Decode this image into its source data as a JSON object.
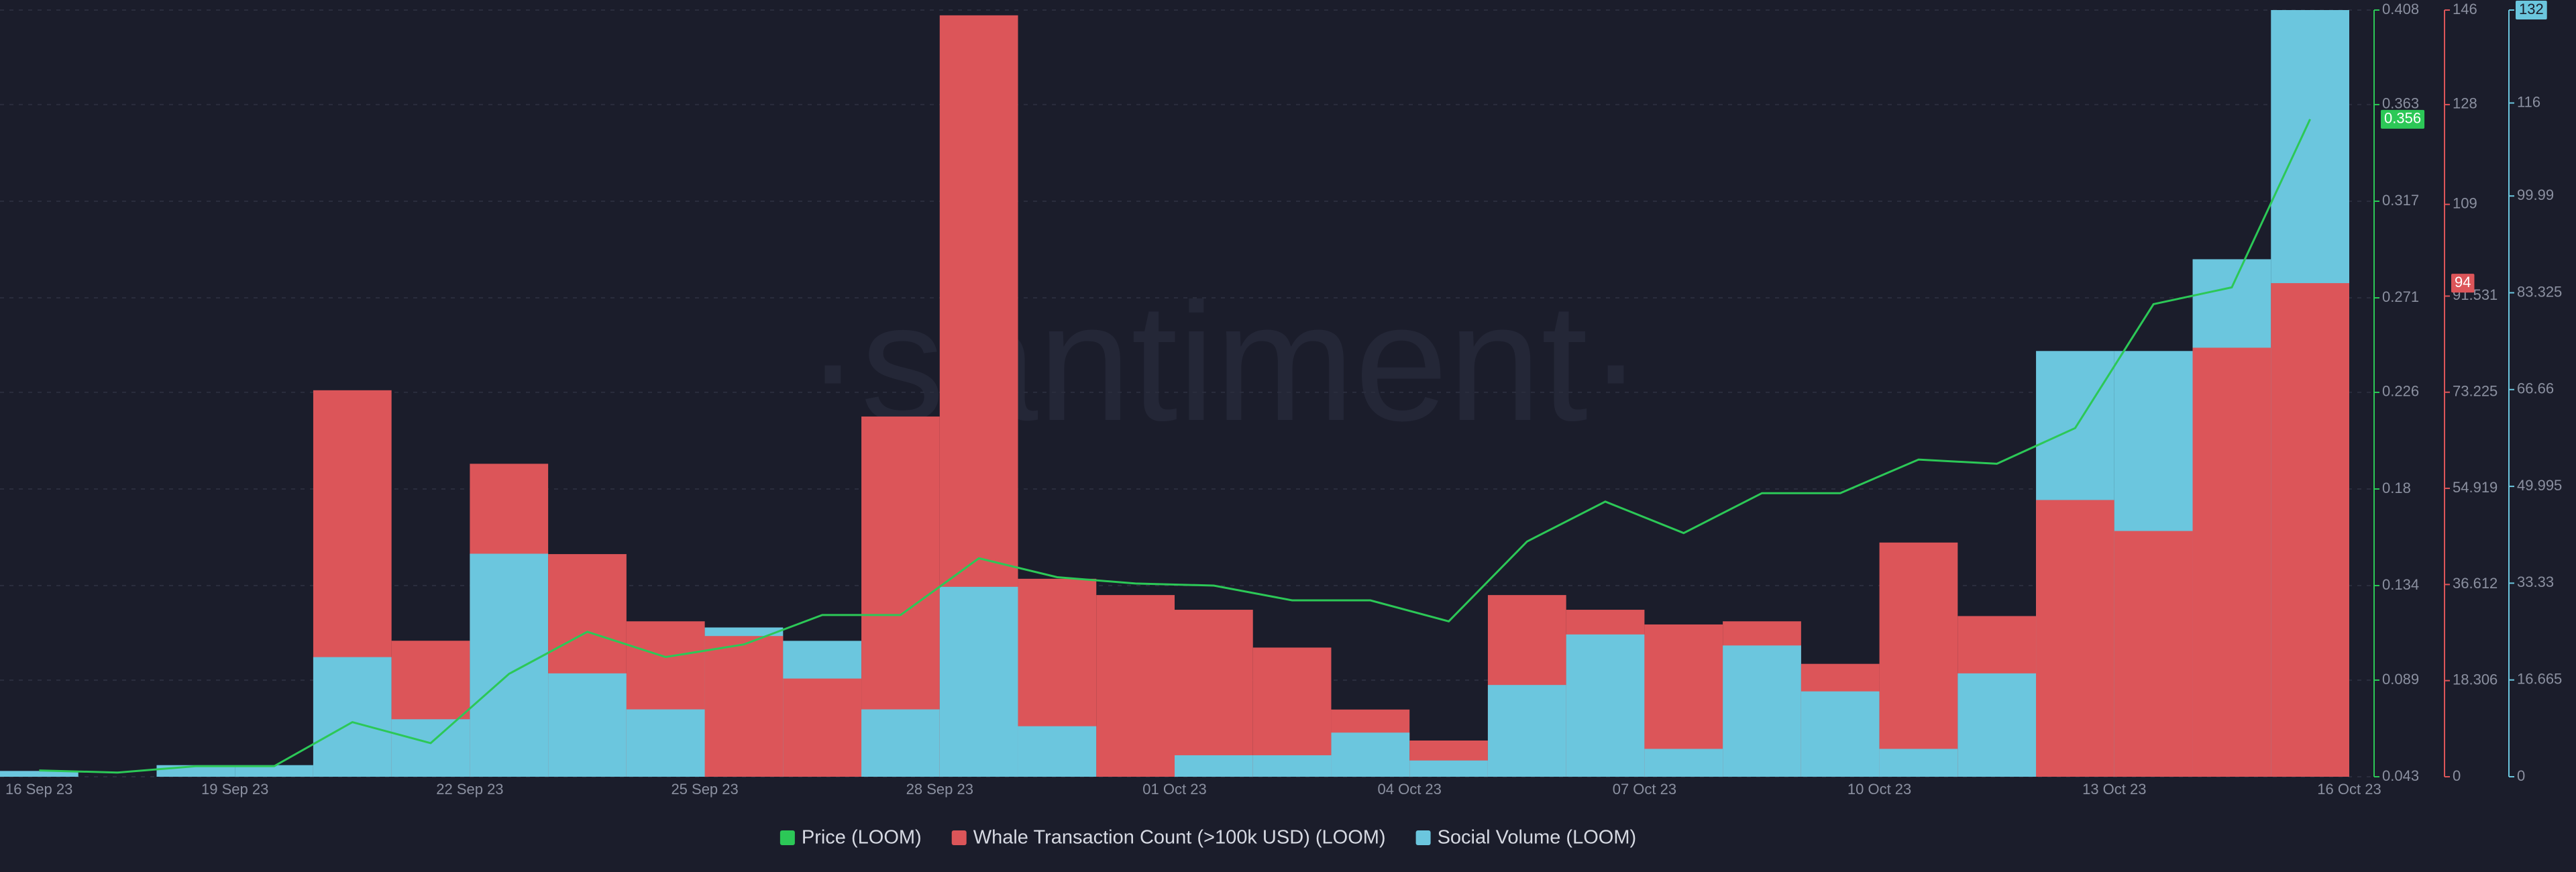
{
  "chart_data": {
    "type": "bar",
    "watermark": "·santiment·",
    "categories": [
      "16 Sep 23",
      null,
      null,
      "19 Sep 23",
      null,
      null,
      "22 Sep 23",
      null,
      null,
      "25 Sep 23",
      null,
      null,
      "28 Sep 23",
      null,
      null,
      "01 Oct 23",
      null,
      null,
      "04 Oct 23",
      null,
      null,
      "07 Oct 23",
      null,
      null,
      "10 Oct 23",
      null,
      null,
      "13 Oct 23",
      null,
      null,
      "16 Oct 23"
    ],
    "series": [
      {
        "name": "Price (LOOM)",
        "type": "line",
        "axis": "y",
        "color": "#2cc857",
        "values": [
          0.046,
          0.045,
          0.048,
          0.048,
          0.069,
          0.059,
          0.092,
          0.112,
          0.1,
          0.106,
          0.12,
          0.12,
          0.147,
          0.138,
          0.135,
          0.134,
          0.127,
          0.127,
          0.117,
          0.155,
          0.174,
          0.159,
          0.178,
          0.178,
          0.194,
          0.192,
          0.209,
          0.268,
          0.276,
          0.356,
          null
        ]
      },
      {
        "name": "Whale Transaction Count (>100k USD) (LOOM)",
        "type": "bar",
        "axis": "y2",
        "color": "#dc5559",
        "values": [
          0,
          0,
          0,
          0,
          73.6,
          25.9,
          59.6,
          42.4,
          29.6,
          26.8,
          18.7,
          68.6,
          145,
          37.7,
          34.6,
          31.8,
          24.6,
          12.8,
          6.9,
          34.6,
          31.8,
          29,
          29.6,
          21.5,
          44.6,
          30.6,
          52.7,
          46.8,
          81.7,
          94,
          null
        ]
      },
      {
        "name": "Social Volume (LOOM)",
        "type": "bar",
        "axis": "y3",
        "color": "#6bc6de",
        "values": [
          1,
          0,
          2,
          2,
          20.6,
          9.9,
          38.4,
          17.8,
          11.6,
          25.7,
          23.4,
          11.6,
          32.7,
          8.7,
          0,
          3.7,
          3.7,
          7.6,
          2.8,
          15.8,
          24.5,
          4.8,
          22.6,
          14.7,
          4.8,
          17.8,
          73.3,
          73.3,
          89.1,
          132,
          null
        ]
      }
    ],
    "ylim": [
      0.043,
      0.408
    ],
    "yticks": [
      0.043,
      0.089,
      0.134,
      0.18,
      0.226,
      0.271,
      0.317,
      0.363,
      0.408
    ],
    "y2lim": [
      0,
      146
    ],
    "y2ticks": [
      0,
      18.306,
      36.612,
      54.919,
      73.225,
      91.531,
      109,
      128,
      146
    ],
    "y3lim": [
      0,
      132
    ],
    "y3ticks": [
      0,
      16.665,
      33.33,
      49.995,
      66.66,
      83.325,
      99.99,
      116,
      132
    ],
    "grid": true,
    "legend": "bottom"
  }
}
